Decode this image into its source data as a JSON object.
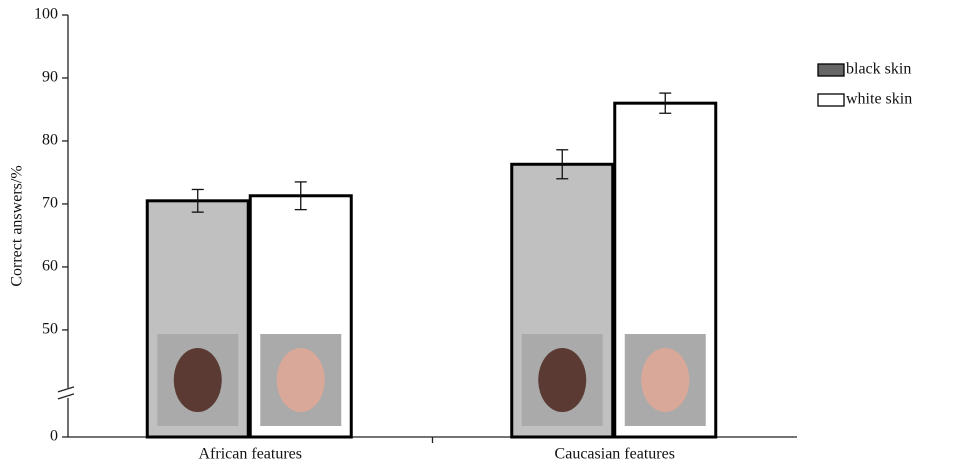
{
  "chart_data": {
    "type": "bar",
    "y_label": "Correct answers/%",
    "categories": [
      "African features",
      "Caucasian features"
    ],
    "series": [
      {
        "name": "black skin",
        "color": "#c0c0c0",
        "legend_color": "#666666",
        "values": [
          70.5,
          76.3
        ],
        "errors": [
          1.8,
          2.3
        ]
      },
      {
        "name": "white skin",
        "color": "#ffffff",
        "legend_color": "#ffffff",
        "values": [
          71.3,
          86.0
        ],
        "errors": [
          2.2,
          1.6
        ]
      }
    ],
    "ylim": [
      0,
      100
    ],
    "yticks": [
      0,
      50,
      60,
      70,
      80,
      90,
      100
    ],
    "y_axis_break": true,
    "legend": "upper right"
  }
}
